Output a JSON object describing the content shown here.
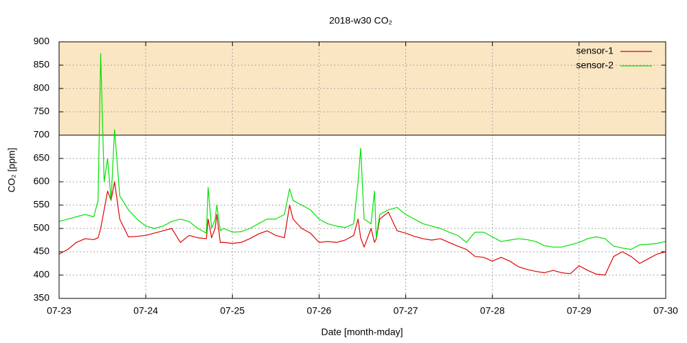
{
  "chart_data": {
    "type": "line",
    "title": "2018-w30 CO₂",
    "x_label": "Date [month-mday]",
    "y_label": "CO₂ [ppm]",
    "x": [
      0,
      0.1,
      0.2,
      0.3,
      0.4,
      0.45,
      0.48,
      0.52,
      0.56,
      0.6,
      0.64,
      0.7,
      0.8,
      0.9,
      1.0,
      1.1,
      1.2,
      1.3,
      1.4,
      1.5,
      1.6,
      1.7,
      1.72,
      1.76,
      1.8,
      1.82,
      1.86,
      1.9,
      2.0,
      2.1,
      2.2,
      2.3,
      2.4,
      2.5,
      2.6,
      2.66,
      2.7,
      2.8,
      2.9,
      3.0,
      3.1,
      3.2,
      3.3,
      3.4,
      3.45,
      3.48,
      3.52,
      3.6,
      3.64,
      3.66,
      3.7,
      3.8,
      3.9,
      4.0,
      4.1,
      4.2,
      4.3,
      4.4,
      4.5,
      4.6,
      4.7,
      4.8,
      4.9,
      5.0,
      5.1,
      5.2,
      5.3,
      5.4,
      5.5,
      5.6,
      5.7,
      5.8,
      5.9,
      6.0,
      6.1,
      6.2,
      6.3,
      6.4,
      6.5,
      6.6,
      6.7,
      6.8,
      6.9,
      7.0
    ],
    "series": [
      {
        "name": "sensor-1",
        "color": "#e00000",
        "values": [
          445,
          455,
          470,
          478,
          476,
          480,
          500,
          540,
          580,
          560,
          600,
          520,
          482,
          483,
          485,
          490,
          495,
          500,
          470,
          485,
          480,
          478,
          520,
          480,
          500,
          530,
          470,
          470,
          468,
          470,
          478,
          488,
          495,
          485,
          480,
          550,
          520,
          500,
          490,
          470,
          472,
          470,
          475,
          485,
          520,
          480,
          460,
          500,
          470,
          478,
          520,
          535,
          495,
          490,
          483,
          478,
          475,
          478,
          470,
          462,
          455,
          440,
          438,
          430,
          438,
          430,
          418,
          412,
          408,
          405,
          410,
          405,
          403,
          420,
          410,
          402,
          400,
          440,
          450,
          440,
          425,
          435,
          445,
          450
        ]
      },
      {
        "name": "sensor-2",
        "color": "#00e000",
        "values": [
          515,
          520,
          525,
          530,
          525,
          560,
          875,
          600,
          650,
          560,
          712,
          570,
          540,
          520,
          505,
          500,
          505,
          515,
          520,
          515,
          500,
          490,
          588,
          500,
          520,
          550,
          495,
          500,
          492,
          493,
          500,
          510,
          520,
          520,
          530,
          585,
          560,
          550,
          540,
          520,
          510,
          505,
          502,
          510,
          600,
          672,
          520,
          510,
          580,
          480,
          530,
          540,
          545,
          530,
          520,
          510,
          505,
          500,
          492,
          485,
          470,
          492,
          492,
          482,
          472,
          475,
          478,
          476,
          472,
          463,
          460,
          460,
          465,
          470,
          478,
          482,
          478,
          462,
          458,
          455,
          465,
          466,
          468,
          472
        ]
      }
    ],
    "threshold": 700,
    "threshold_color": "#fbe6c4",
    "xlim": [
      0,
      7
    ],
    "xticks": [
      {
        "value": 0,
        "label": "07-23"
      },
      {
        "value": 1,
        "label": "07-24"
      },
      {
        "value": 2,
        "label": "07-25"
      },
      {
        "value": 3,
        "label": "07-26"
      },
      {
        "value": 4,
        "label": "07-27"
      },
      {
        "value": 5,
        "label": "07-28"
      },
      {
        "value": 6,
        "label": "07-29"
      },
      {
        "value": 7,
        "label": "07-30"
      }
    ],
    "ylim": [
      350,
      900
    ],
    "yticks": [
      350,
      400,
      450,
      500,
      550,
      600,
      650,
      700,
      750,
      800,
      850,
      900
    ],
    "grid": true,
    "legend": "top-right"
  }
}
